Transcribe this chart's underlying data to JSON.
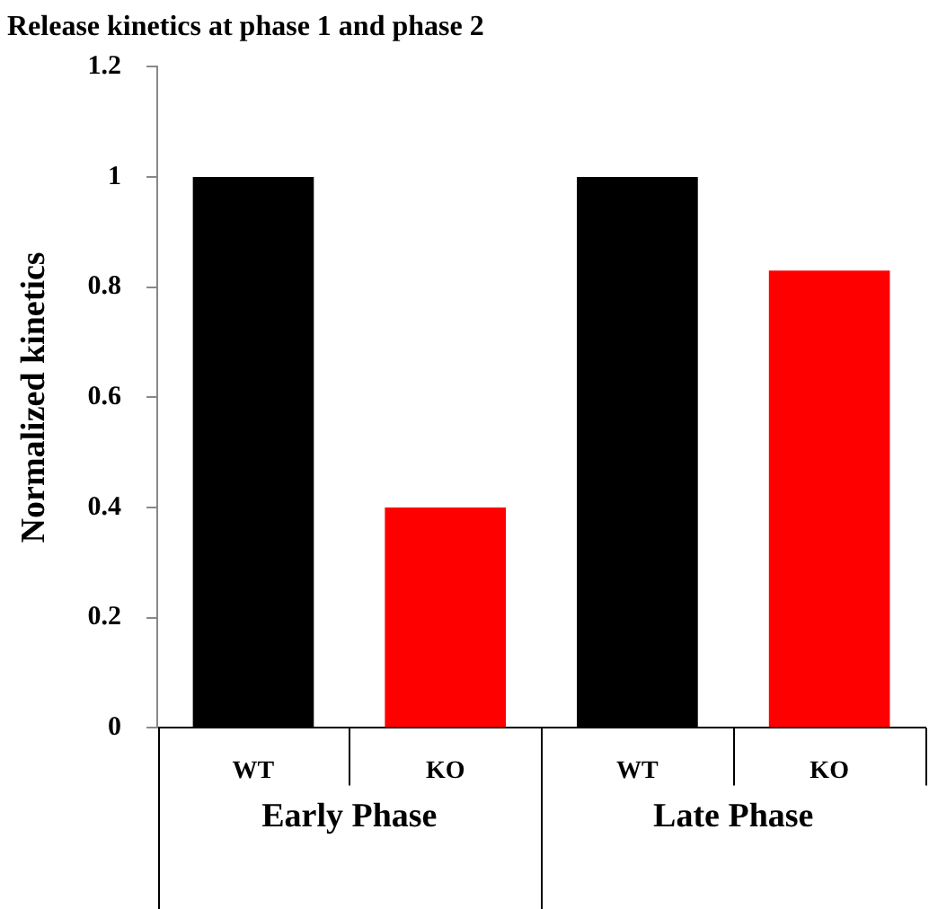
{
  "chart_data": {
    "type": "bar",
    "title": "Release kinetics at phase 1 and phase 2",
    "ylabel": "Normalized kinetics",
    "categories": [
      "WT",
      "KO",
      "WT",
      "KO"
    ],
    "values": [
      1,
      0.4,
      1,
      0.83
    ],
    "colors": [
      "#000000",
      "#ff0000",
      "#000000",
      "#ff0000"
    ],
    "ylim": [
      0,
      1.2
    ],
    "yticks": [
      0,
      0.2,
      0.4,
      0.6,
      0.8,
      1,
      1.2
    ],
    "annotations": [
      "Early Phase",
      "Late Phase"
    ]
  }
}
